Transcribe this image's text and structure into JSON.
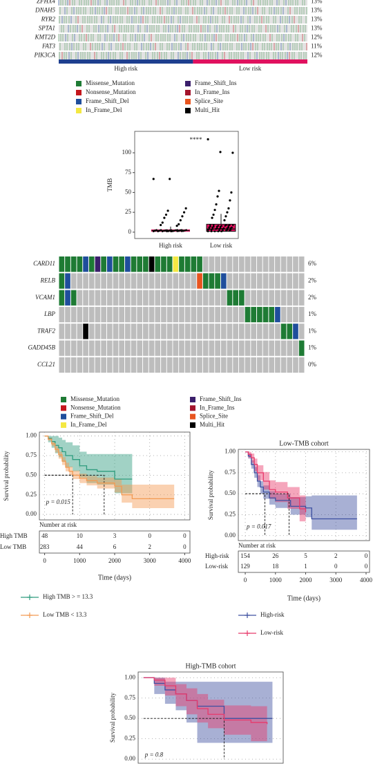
{
  "chart_data": [
    {
      "type": "oncoplot",
      "genes": [
        "ZFHX4",
        "DNAH5",
        "RYR2",
        "SPTA1",
        "KMT2D",
        "FAT3",
        "PIK3CA"
      ],
      "values": [
        13,
        13,
        13,
        13,
        12,
        11,
        12
      ],
      "value_labels": [
        "13%",
        "13%",
        "13%",
        "13%",
        "12%",
        "11%",
        "12%"
      ],
      "groups": [
        "High risk",
        "Low risk"
      ],
      "group_colors": [
        "#1f3f8f",
        "#e0115f"
      ],
      "legend": [
        {
          "name": "Missense_Mutation",
          "color": "#1e7b34"
        },
        {
          "name": "Nonsense_Mutation",
          "color": "#c4161c"
        },
        {
          "name": "Frame_Shift_Del",
          "color": "#1f4e9c"
        },
        {
          "name": "In_Frame_Del",
          "color": "#f4e842"
        },
        {
          "name": "Frame_Shift_Ins",
          "color": "#3b1f6b"
        },
        {
          "name": "In_Frame_Ins",
          "color": "#a3142c"
        },
        {
          "name": "Splice_Site",
          "color": "#e8541e"
        },
        {
          "name": "Multi_Hit",
          "color": "#000000"
        }
      ]
    },
    {
      "type": "box",
      "ylabel": "TMB",
      "annotation": "****",
      "categories": [
        "High risk",
        "Low risk"
      ],
      "ylim": [
        -8,
        127
      ],
      "yticks": [
        0,
        25,
        50,
        75,
        100
      ],
      "series": [
        {
          "name": "High risk",
          "color": "#e0115f",
          "whisker_low": 0,
          "q1": 1,
          "median": 2,
          "q3": 3,
          "whisker_high": 7,
          "points": [
            67,
            67,
            30,
            27,
            25,
            22,
            20,
            18,
            15,
            12,
            10,
            9,
            8
          ]
        },
        {
          "name": "Low risk",
          "color": "#e0115f",
          "whisker_low": 0,
          "q1": 1,
          "median": 4,
          "q3": 10,
          "whisker_high": 23,
          "points": [
            117,
            101,
            100,
            52,
            50,
            45,
            40,
            35,
            30,
            28,
            25,
            22,
            20,
            18,
            15
          ]
        }
      ]
    },
    {
      "type": "oncoplot",
      "genes": [
        "CARD11",
        "RELB",
        "VCAM1",
        "LBP",
        "TRAF2",
        "GADD45B",
        "CCL21"
      ],
      "values": [
        6,
        2,
        2,
        1,
        1,
        1,
        0
      ],
      "value_labels": [
        "6%",
        "2%",
        "2%",
        "1%",
        "1%",
        "1%",
        "0%"
      ],
      "cells": [
        [
          0,
          0,
          0,
          0,
          2,
          0,
          4,
          0,
          2,
          0,
          0,
          2,
          0,
          0,
          0,
          7,
          0,
          0,
          0,
          3,
          0,
          0,
          0,
          0,
          null,
          null,
          null,
          null,
          null,
          null,
          null,
          null,
          null,
          null,
          null,
          null,
          null,
          null,
          null,
          null,
          null
        ],
        [
          0,
          2,
          null,
          null,
          null,
          null,
          null,
          null,
          null,
          null,
          null,
          null,
          null,
          null,
          null,
          null,
          null,
          null,
          null,
          null,
          null,
          null,
          null,
          6,
          0,
          0,
          0,
          2,
          null,
          null,
          null,
          null,
          null,
          null,
          null,
          null,
          null,
          null,
          null,
          null,
          null
        ],
        [
          0,
          2,
          0,
          null,
          null,
          null,
          null,
          null,
          null,
          null,
          null,
          null,
          null,
          null,
          null,
          null,
          null,
          null,
          null,
          null,
          null,
          null,
          null,
          null,
          null,
          null,
          null,
          null,
          0,
          0,
          0,
          null,
          null,
          null,
          null,
          null,
          null,
          null,
          null,
          null,
          null
        ],
        [
          null,
          null,
          null,
          null,
          null,
          null,
          null,
          null,
          null,
          null,
          null,
          null,
          null,
          null,
          null,
          null,
          null,
          null,
          null,
          null,
          null,
          null,
          null,
          null,
          null,
          null,
          null,
          null,
          null,
          null,
          null,
          0,
          0,
          0,
          0,
          0,
          2,
          null,
          null,
          null,
          null
        ],
        [
          null,
          null,
          null,
          null,
          7,
          null,
          null,
          null,
          null,
          null,
          null,
          null,
          null,
          null,
          null,
          null,
          null,
          null,
          null,
          null,
          null,
          null,
          null,
          null,
          null,
          null,
          null,
          null,
          null,
          null,
          null,
          null,
          null,
          null,
          null,
          null,
          null,
          0,
          0,
          2,
          null
        ],
        [
          null,
          null,
          null,
          null,
          null,
          null,
          null,
          null,
          null,
          null,
          null,
          null,
          null,
          null,
          null,
          null,
          null,
          null,
          null,
          null,
          null,
          null,
          null,
          null,
          null,
          null,
          null,
          null,
          null,
          null,
          null,
          null,
          null,
          null,
          null,
          null,
          null,
          null,
          null,
          null,
          0
        ],
        [
          null,
          null,
          null,
          null,
          null,
          null,
          null,
          null,
          null,
          null,
          null,
          null,
          null,
          null,
          null,
          null,
          null,
          null,
          null,
          null,
          null,
          null,
          null,
          null,
          null,
          null,
          null,
          null,
          null,
          null,
          null,
          null,
          null,
          null,
          null,
          null,
          null,
          null,
          null,
          null,
          null
        ]
      ],
      "legend": [
        {
          "name": "Missense_Mutation",
          "color": "#1e7b34"
        },
        {
          "name": "Nonsense_Mutation",
          "color": "#c4161c"
        },
        {
          "name": "Frame_Shift_Del",
          "color": "#1f4e9c"
        },
        {
          "name": "In_Frame_Del",
          "color": "#f4e842"
        },
        {
          "name": "Frame_Shift_Ins",
          "color": "#3b1f6b"
        },
        {
          "name": "In_Frame_Ins",
          "color": "#a3142c"
        },
        {
          "name": "Splice_Site",
          "color": "#e8541e"
        },
        {
          "name": "Multi_Hit",
          "color": "#000000"
        }
      ]
    },
    {
      "type": "km",
      "xlabel": "Time (days)",
      "ylabel": "Survival probability",
      "annotation": "p = 0.015",
      "risk_title": "Number at risk",
      "xlim": [
        -150,
        4150
      ],
      "ylim": [
        -0.07,
        1.05
      ],
      "xticks": [
        0,
        1000,
        2000,
        3000,
        4000
      ],
      "yticks": [
        {
          "value": 0,
          "label": "0.00"
        },
        {
          "value": 0.25,
          "label": "0.25"
        },
        {
          "value": 0.5,
          "label": "0.50"
        },
        {
          "value": 0.75,
          "label": "0.75"
        },
        {
          "value": 1,
          "label": "1.00"
        }
      ],
      "grid": true,
      "series": [
        {
          "name": "High TMB > = 13.3",
          "risk_label": "High TMB",
          "color": "#2e9c7e",
          "at_risk": [
            48,
            10,
            3,
            0,
            0
          ],
          "median": 1700,
          "x": [
            0,
            100,
            200,
            300,
            400,
            500,
            600,
            800,
            1000,
            1200,
            1500,
            1700,
            2000,
            2500
          ],
          "values": [
            1,
            0.97,
            0.93,
            0.88,
            0.85,
            0.8,
            0.75,
            0.7,
            0.62,
            0.57,
            0.55,
            0.55,
            0.45,
            0.45
          ],
          "ci_lower": [
            1,
            0.92,
            0.85,
            0.78,
            0.73,
            0.67,
            0.6,
            0.55,
            0.47,
            0.4,
            0.38,
            0.38,
            0.27,
            0.27
          ],
          "ci_upper": [
            1,
            1,
            1,
            1,
            0.98,
            0.95,
            0.92,
            0.88,
            0.8,
            0.77,
            0.77,
            0.77,
            0.77,
            0.77
          ]
        },
        {
          "name": "Low TMB < 13.3",
          "risk_label": "Low TMB",
          "color": "#f39a52",
          "at_risk": [
            283,
            44,
            6,
            2,
            0
          ],
          "median": 800,
          "x": [
            0,
            100,
            200,
            300,
            400,
            500,
            600,
            700,
            800,
            1000,
            1200,
            1500,
            2000,
            2200,
            2500,
            3000,
            3700
          ],
          "values": [
            1,
            0.96,
            0.9,
            0.83,
            0.76,
            0.68,
            0.6,
            0.55,
            0.5,
            0.46,
            0.43,
            0.4,
            0.36,
            0.25,
            0.2,
            0.2,
            0.2
          ],
          "ci_lower": [
            1,
            0.94,
            0.87,
            0.79,
            0.71,
            0.63,
            0.55,
            0.5,
            0.45,
            0.4,
            0.37,
            0.33,
            0.28,
            0.15,
            0.08,
            0.08,
            0.08
          ],
          "ci_upper": [
            1,
            0.98,
            0.93,
            0.87,
            0.8,
            0.73,
            0.66,
            0.61,
            0.56,
            0.52,
            0.49,
            0.47,
            0.45,
            0.38,
            0.38,
            0.38,
            0.38
          ]
        }
      ]
    },
    {
      "type": "km",
      "title": "Low-TMB cohort",
      "xlabel": "Time (days)",
      "ylabel": "Survival probability",
      "annotation": "p = 0.017",
      "risk_title": "Number at risk",
      "xlim": [
        -230,
        4115
      ],
      "ylim": [
        -0.06,
        1.03
      ],
      "xticks": [
        0,
        1000,
        2000,
        3000,
        4000
      ],
      "yticks": [
        {
          "value": 0,
          "label": "0.00"
        },
        {
          "value": 0.25,
          "label": "0.25"
        },
        {
          "value": 0.5,
          "label": "0.50"
        },
        {
          "value": 0.75,
          "label": "0.75"
        },
        {
          "value": 1,
          "label": "1.00"
        }
      ],
      "grid": true,
      "series": [
        {
          "name": "High-risk",
          "risk_label": "High-risk",
          "color": "#3d4fa0",
          "at_risk": [
            154,
            26,
            5,
            2,
            0
          ],
          "median": 650,
          "x": [
            0,
            100,
            200,
            300,
            400,
            500,
            600,
            800,
            1000,
            1500,
            2000,
            2200,
            3700
          ],
          "values": [
            1,
            0.95,
            0.85,
            0.75,
            0.65,
            0.58,
            0.52,
            0.45,
            0.42,
            0.35,
            0.33,
            0.2,
            0.2
          ],
          "ci_lower": [
            1,
            0.92,
            0.8,
            0.69,
            0.58,
            0.5,
            0.44,
            0.37,
            0.33,
            0.25,
            0.22,
            0.07,
            0.07
          ],
          "ci_upper": [
            1,
            0.98,
            0.9,
            0.82,
            0.72,
            0.65,
            0.6,
            0.53,
            0.5,
            0.46,
            0.47,
            0.48,
            0.48
          ]
        },
        {
          "name": "Low-risk",
          "risk_label": "Low-risk",
          "color": "#e8396b",
          "at_risk": [
            129,
            18,
            1,
            0,
            0
          ],
          "median": 1450,
          "x": [
            0,
            100,
            200,
            300,
            400,
            600,
            800,
            1000,
            1400,
            1800,
            2000
          ],
          "values": [
            1,
            0.97,
            0.93,
            0.85,
            0.75,
            0.65,
            0.55,
            0.52,
            0.45,
            0.32,
            0.28
          ],
          "ci_lower": [
            1,
            0.93,
            0.87,
            0.77,
            0.66,
            0.55,
            0.44,
            0.4,
            0.32,
            0.17,
            0.14
          ],
          "ci_upper": [
            1,
            1,
            0.98,
            0.92,
            0.84,
            0.76,
            0.66,
            0.64,
            0.58,
            0.48,
            0.48
          ]
        }
      ]
    },
    {
      "type": "km",
      "title": "High-TMB cohort",
      "ylabel": "Survival probability",
      "annotation": "p = 0.8",
      "xlim": [
        -100,
        2600
      ],
      "ylim": [
        -0.05,
        1.07
      ],
      "yticks": [
        {
          "value": 0,
          "label": "0.00"
        },
        {
          "value": 0.25,
          "label": "0.25"
        },
        {
          "value": 0.5,
          "label": "0.50"
        },
        {
          "value": 0.75,
          "label": "0.75"
        },
        {
          "value": 1,
          "label": "1.00"
        }
      ],
      "grid": true,
      "series": [
        {
          "name": "High-risk",
          "color": "#3d4fa0",
          "median": 1500,
          "x": [
            0,
            200,
            400,
            600,
            800,
            1000,
            1500,
            2400
          ],
          "values": [
            1,
            0.93,
            0.85,
            0.8,
            0.72,
            0.65,
            0.5,
            0.5
          ],
          "ci_lower": [
            1,
            0.8,
            0.68,
            0.6,
            0.45,
            0.2,
            0.2,
            0.2
          ],
          "ci_upper": [
            1,
            1,
            0.95,
            0.95,
            0.95,
            0.95,
            0.95,
            0.95
          ]
        },
        {
          "name": "Low-risk",
          "color": "#e8396b",
          "x": [
            0,
            200,
            400,
            600,
            800,
            1000,
            1200,
            1500,
            2000,
            2300
          ],
          "values": [
            1,
            0.97,
            0.9,
            0.8,
            0.72,
            0.62,
            0.55,
            0.48,
            0.45,
            0.43
          ],
          "ci_lower": [
            1,
            0.9,
            0.78,
            0.65,
            0.55,
            0.45,
            0.38,
            0.3,
            0.22,
            0.22
          ],
          "ci_upper": [
            1,
            1,
            1,
            0.92,
            0.87,
            0.8,
            0.73,
            0.66,
            0.65,
            0.65
          ]
        }
      ]
    }
  ]
}
